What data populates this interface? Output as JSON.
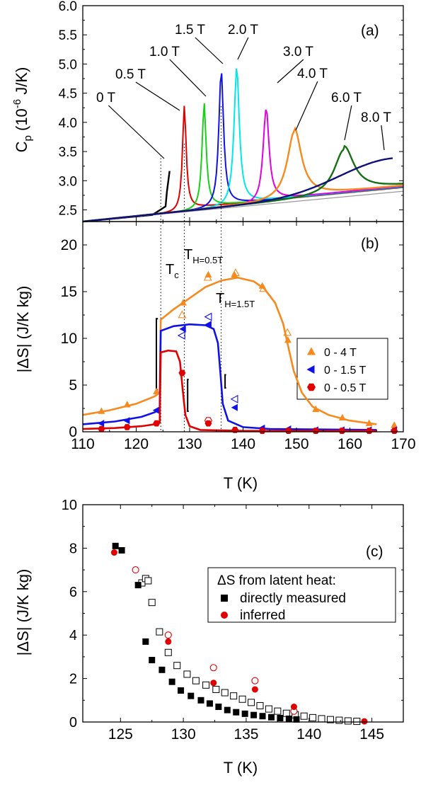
{
  "chart_data": [
    {
      "panel": "a",
      "type": "line",
      "panel_label": "(a)",
      "ylabel_main": "C",
      "ylabel_sub": "p",
      "ylabel_unit_pre": " (10",
      "ylabel_unit_exp": "-6",
      "ylabel_unit_post": " J/K)",
      "xlim": [
        110,
        170
      ],
      "ylim": [
        2.3,
        6.0
      ],
      "yticks": [
        "2.5",
        "3.0",
        "3.5",
        "4.0",
        "4.5",
        "5.0",
        "5.5",
        "6.0"
      ],
      "field_labels": [
        "0 T",
        "0.5 T",
        "1.0 T",
        "1.5 T",
        "2.0 T",
        "3.0 T",
        "4.0 T",
        "6.0 T",
        "8.0 T"
      ],
      "series": [
        {
          "name": "0 T",
          "color": "#000000",
          "peak_T": 126.4,
          "peak_cp": 3.22,
          "style": "truncated"
        },
        {
          "name": "0.5 T",
          "color": "#e00000",
          "peak_T": 129.0,
          "peak_cp": 4.33,
          "style": "sharp"
        },
        {
          "name": "1.0 T",
          "color": "#18d018",
          "peak_T": 132.7,
          "peak_cp": 4.33,
          "style": "sharp"
        },
        {
          "name": "1.5 T",
          "color": "#1010e8",
          "peak_T": 135.9,
          "peak_cp": 4.9,
          "style": "sharp"
        },
        {
          "name": "2.0 T",
          "color": "#00e8e8",
          "peak_T": 138.8,
          "peak_cp": 4.98,
          "style": "sharp"
        },
        {
          "name": "3.0 T",
          "color": "#e000e0",
          "peak_T": 144.3,
          "peak_cp": 4.26,
          "style": "sharp"
        },
        {
          "name": "4.0 T",
          "color": "#f58a1f",
          "peak_T": 149.6,
          "peak_cp": 3.87,
          "style": "broad"
        },
        {
          "name": "6.0 T",
          "color": "#157015",
          "peak_T": 158.9,
          "peak_cp": 3.55,
          "style": "broad"
        },
        {
          "name": "8.0 T",
          "color": "#101078",
          "peak_T": 168,
          "peak_cp": 3.39,
          "style": "rising"
        }
      ],
      "baseline": {
        "T": [
          110,
          170
        ],
        "cp": [
          2.3,
          2.82
        ]
      }
    },
    {
      "panel": "b",
      "type": "scatter",
      "panel_label": "(b)",
      "ylabel": "|ΔS| (J/K kg)",
      "xlabel": "T (K)",
      "xlim": [
        110,
        170
      ],
      "ylim": [
        0,
        22.5
      ],
      "xticks": [
        "110",
        "120",
        "130",
        "140",
        "150",
        "160",
        "170"
      ],
      "yticks": [
        "0",
        "5",
        "10",
        "15",
        "20"
      ],
      "annotations": {
        "tc_main": "T",
        "tc_sub": "c",
        "th05_main": "T",
        "th05_sub": "H=0.5T",
        "th15_main": "T",
        "th15_sub": "H=1.5T"
      },
      "legend_position": "top-right",
      "series": [
        {
          "name": "0 - 4 T",
          "color": "#f58a1f",
          "marker": "triangle-up",
          "filled": [
            [
              113.5,
              2.2
            ],
            [
              118.3,
              2.9
            ],
            [
              123.8,
              4.3
            ],
            [
              128.8,
              13.8
            ],
            [
              133.5,
              16.8
            ],
            [
              138.4,
              16.8
            ],
            [
              143.6,
              15.6
            ],
            [
              148.4,
              9.8
            ],
            [
              153.6,
              2.4
            ],
            [
              158.6,
              1.5
            ],
            [
              163.6,
              0.9
            ],
            [
              168.3,
              0.7
            ]
          ],
          "open": [
            [
              128.6,
              12.5
            ],
            [
              133.4,
              16.5
            ],
            [
              138.6,
              17.0
            ],
            [
              143.8,
              15.3
            ],
            [
              148.3,
              10.6
            ]
          ],
          "fit": [
            [
              110,
              1.8
            ],
            [
              115,
              2.3
            ],
            [
              120,
              3.0
            ],
            [
              123.5,
              3.8
            ],
            [
              124.4,
              4.2
            ],
            [
              124.6,
              12.0
            ],
            [
              127,
              13.1
            ],
            [
              130,
              14.3
            ],
            [
              133,
              15.5
            ],
            [
              136,
              16.2
            ],
            [
              139,
              16.5
            ],
            [
              142,
              16.1
            ],
            [
              144,
              15.3
            ],
            [
              146,
              13.8
            ],
            [
              147.5,
              11.6
            ],
            [
              148.5,
              9.0
            ],
            [
              149.5,
              6.5
            ],
            [
              151,
              4.2
            ],
            [
              153,
              2.7
            ],
            [
              156,
              1.8
            ],
            [
              160,
              1.2
            ],
            [
              165,
              0.8
            ]
          ]
        },
        {
          "name": "0 - 1.5 T",
          "color": "#1010e8",
          "marker": "triangle-left",
          "filled": [
            [
              113.5,
              0.9
            ],
            [
              118.3,
              1.2
            ],
            [
              123.8,
              2.3
            ],
            [
              128.8,
              11.0
            ],
            [
              133.6,
              11.5
            ],
            [
              138.5,
              2.6
            ],
            [
              143.6,
              0.4
            ],
            [
              148.5,
              0.3
            ],
            [
              153.6,
              0.2
            ],
            [
              158.5,
              0.2
            ],
            [
              163.6,
              0.2
            ],
            [
              168.3,
              0.2
            ]
          ],
          "open": [
            [
              128.6,
              10.3
            ],
            [
              133.6,
              12.3
            ],
            [
              138.5,
              3.5
            ]
          ],
          "fit": [
            [
              110,
              0.8
            ],
            [
              116,
              1.1
            ],
            [
              121,
              1.6
            ],
            [
              123.5,
              2.1
            ],
            [
              124.4,
              2.4
            ],
            [
              124.6,
              10.8
            ],
            [
              127,
              11.3
            ],
            [
              130,
              11.5
            ],
            [
              133,
              11.4
            ],
            [
              134.5,
              11.0
            ],
            [
              135.3,
              9.5
            ],
            [
              135.8,
              6.0
            ],
            [
              136.2,
              3.0
            ],
            [
              137.2,
              1.2
            ],
            [
              140,
              0.5
            ],
            [
              145,
              0.3
            ],
            [
              165,
              0.2
            ]
          ]
        },
        {
          "name": "0 - 0.5 T",
          "color": "#e00000",
          "marker": "hexagon",
          "filled": [
            [
              113.5,
              0.3
            ],
            [
              118.3,
              0.5
            ],
            [
              123.8,
              0.9
            ],
            [
              128.6,
              6.3
            ],
            [
              133.5,
              0.9
            ],
            [
              138.5,
              0.2
            ],
            [
              143.6,
              0.1
            ],
            [
              148.5,
              0.1
            ],
            [
              153.6,
              0.1
            ],
            [
              158.5,
              0.1
            ],
            [
              163.6,
              0.1
            ],
            [
              168.3,
              0.1
            ]
          ],
          "open": [
            [
              133.5,
              1.2
            ]
          ],
          "fit": [
            [
              110,
              0.3
            ],
            [
              116,
              0.4
            ],
            [
              121,
              0.6
            ],
            [
              123.5,
              0.8
            ],
            [
              124.4,
              1.0
            ],
            [
              124.6,
              8.5
            ],
            [
              126,
              8.7
            ],
            [
              127.5,
              8.6
            ],
            [
              128.2,
              7.5
            ],
            [
              128.7,
              4.5
            ],
            [
              129.2,
              1.8
            ],
            [
              130,
              0.6
            ],
            [
              132,
              0.2
            ],
            [
              140,
              0.1
            ],
            [
              165,
              0.1
            ]
          ]
        }
      ]
    },
    {
      "panel": "c",
      "type": "scatter",
      "panel_label": "(c)",
      "ylabel": "|ΔS| (J/K kg)",
      "xlabel": "T (K)",
      "xlim": [
        122,
        147.5
      ],
      "ylim": [
        0,
        10
      ],
      "xticks": [
        "125",
        "130",
        "135",
        "140",
        "145"
      ],
      "yticks": [
        "0",
        "2",
        "4",
        "6",
        "8",
        "10"
      ],
      "legend_title": "ΔS from latent heat:",
      "legend_position": "right",
      "series": [
        {
          "name": "directly measured",
          "color": "#000000",
          "marker": "square",
          "filled": [
            [
              124.6,
              8.1
            ],
            [
              125.1,
              7.9
            ],
            [
              126.4,
              6.3
            ],
            [
              127.0,
              3.7
            ],
            [
              127.5,
              2.85
            ],
            [
              128.3,
              2.4
            ],
            [
              129.1,
              1.85
            ],
            [
              129.8,
              1.45
            ],
            [
              130.6,
              1.2
            ],
            [
              131.4,
              1.0
            ],
            [
              132.1,
              0.85
            ],
            [
              132.8,
              0.7
            ],
            [
              133.5,
              0.55
            ],
            [
              134.2,
              0.45
            ],
            [
              134.9,
              0.38
            ],
            [
              135.6,
              0.32
            ],
            [
              136.3,
              0.27
            ],
            [
              137.0,
              0.22
            ],
            [
              137.7,
              0.18
            ],
            [
              138.4,
              0.15
            ],
            [
              139.0,
              0.12
            ]
          ],
          "open": [
            [
              126.7,
              6.4
            ],
            [
              127.0,
              6.6
            ],
            [
              127.2,
              6.5
            ],
            [
              127.5,
              5.5
            ],
            [
              128.1,
              4.15
            ],
            [
              128.8,
              3.2
            ],
            [
              129.5,
              2.6
            ],
            [
              130.3,
              2.2
            ],
            [
              131.0,
              1.9
            ],
            [
              131.8,
              1.7
            ],
            [
              132.6,
              1.5
            ],
            [
              133.3,
              1.35
            ],
            [
              134.0,
              1.2
            ],
            [
              134.7,
              1.05
            ],
            [
              135.4,
              0.9
            ],
            [
              136.1,
              0.75
            ],
            [
              136.8,
              0.6
            ],
            [
              137.5,
              0.5
            ],
            [
              138.2,
              0.4
            ],
            [
              138.9,
              0.33
            ],
            [
              139.6,
              0.27
            ],
            [
              140.3,
              0.2
            ],
            [
              141.0,
              0.15
            ],
            [
              141.7,
              0.11
            ],
            [
              142.4,
              0.08
            ],
            [
              143.1,
              0.05
            ],
            [
              143.8,
              0.03
            ]
          ]
        },
        {
          "name": "inferred",
          "color": "#e00000",
          "marker": "circle",
          "filled": [
            [
              124.5,
              7.8
            ],
            [
              128.8,
              3.7
            ],
            [
              132.4,
              1.8
            ],
            [
              135.7,
              1.5
            ],
            [
              138.8,
              0.7
            ],
            [
              144.4,
              0.03
            ]
          ],
          "open": [
            [
              126.2,
              7.0
            ],
            [
              128.8,
              4.0
            ],
            [
              132.4,
              2.5
            ],
            [
              135.7,
              1.9
            ],
            [
              138.8,
              0.5
            ]
          ]
        }
      ]
    }
  ]
}
